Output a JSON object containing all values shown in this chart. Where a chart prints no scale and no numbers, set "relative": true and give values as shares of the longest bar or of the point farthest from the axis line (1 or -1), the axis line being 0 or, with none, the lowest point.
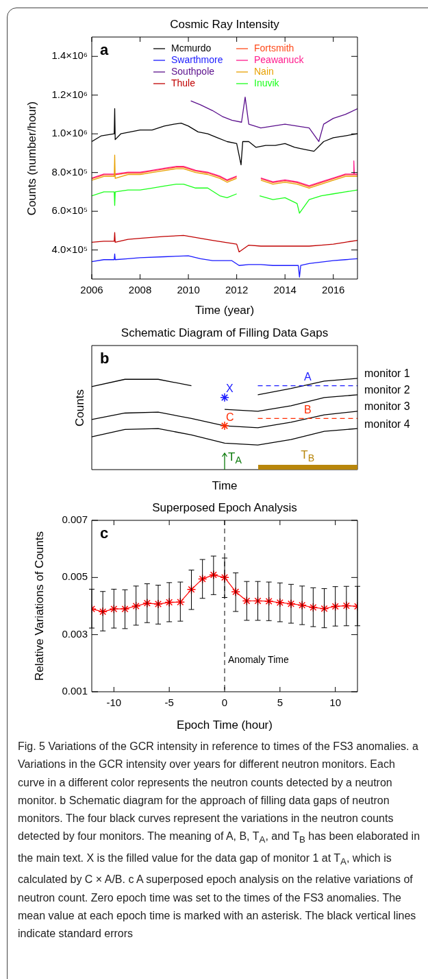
{
  "chart_data": [
    {
      "type": "line",
      "title": "Cosmic Ray Intensity",
      "xlabel": "Time (year)",
      "ylabel": "Counts (number/hour)",
      "legend": "top",
      "annotations": [
        "a"
      ],
      "xlim": [
        2006,
        2017
      ],
      "xticks": [
        2006,
        2008,
        2010,
        2012,
        2014,
        2016
      ],
      "ylim": [
        250000,
        1500000
      ],
      "yticks": [
        {
          "value": 400000,
          "label": "4.0×10⁵"
        },
        {
          "value": 600000,
          "label": "6.0×10⁵"
        },
        {
          "value": 800000,
          "label": "8.0×10⁵"
        },
        {
          "value": 1000000,
          "label": "1.0×10⁶"
        },
        {
          "value": 1200000,
          "label": "1.2×10⁶"
        },
        {
          "value": 1400000,
          "label": "1.4×10⁶"
        }
      ],
      "series": [
        {
          "name": "Mcmurdo",
          "color": "#000000",
          "x": [
            2006,
            2006.4,
            2006.93,
            2006.95,
            2006.97,
            2007.2,
            2007.6,
            2008,
            2008.5,
            2009,
            2009.4,
            2009.7,
            2010,
            2010.4,
            2010.8,
            2011.2,
            2011.6,
            2012,
            2012.18,
            2012.25,
            2012.5,
            2012.8,
            2013.2,
            2013.6,
            2014,
            2014.4,
            2014.8,
            2015.2,
            2015.6,
            2016,
            2016.5,
            2017
          ],
          "values": [
            960000,
            990000,
            1000000,
            1130000,
            970000,
            1000000,
            1010000,
            1020000,
            1020000,
            1040000,
            1050000,
            1055000,
            1040000,
            1010000,
            1000000,
            980000,
            960000,
            950000,
            840000,
            960000,
            960000,
            930000,
            940000,
            940000,
            950000,
            930000,
            920000,
            910000,
            960000,
            980000,
            990000,
            1000000
          ]
        },
        {
          "name": "Swarthmore",
          "color": "#1a1aff",
          "x": [
            2006,
            2006.5,
            2006.93,
            2006.95,
            2006.97,
            2007.5,
            2008,
            2009,
            2010,
            2010.5,
            2011,
            2011.8,
            2012.1,
            2012.5,
            2013,
            2013.5,
            2014,
            2014.55,
            2014.6,
            2014.65,
            2015,
            2016,
            2016.5,
            2017
          ],
          "values": [
            340000,
            350000,
            350000,
            380000,
            350000,
            355000,
            360000,
            365000,
            370000,
            355000,
            345000,
            345000,
            320000,
            325000,
            325000,
            320000,
            320000,
            320000,
            260000,
            320000,
            330000,
            345000,
            350000,
            355000
          ]
        },
        {
          "name": "Southpole",
          "color": "#5a0f8c",
          "x": [
            2010.1,
            2010.5,
            2011,
            2011.4,
            2011.8,
            2012.2,
            2012.35,
            2012.5,
            2013,
            2013.5,
            2014,
            2014.5,
            2015,
            2015.4,
            2015.6,
            2016,
            2016.5,
            2017
          ],
          "values": [
            1170000,
            1150000,
            1120000,
            1090000,
            1070000,
            1060000,
            1190000,
            1050000,
            1030000,
            1040000,
            1050000,
            1040000,
            1030000,
            960000,
            1050000,
            1080000,
            1100000,
            1130000
          ]
        },
        {
          "name": "Thule",
          "color": "#c00000",
          "x": [
            2006,
            2006.5,
            2006.93,
            2006.95,
            2006.97,
            2007.5,
            2008,
            2009,
            2009.8,
            2010.5,
            2011,
            2011.5,
            2012,
            2012.1,
            2012.5,
            2013,
            2014,
            2015,
            2015.5,
            2016,
            2016.5,
            2017
          ],
          "values": [
            440000,
            445000,
            445000,
            490000,
            440000,
            455000,
            460000,
            470000,
            475000,
            460000,
            450000,
            440000,
            430000,
            390000,
            425000,
            420000,
            420000,
            420000,
            425000,
            430000,
            440000,
            450000
          ]
        },
        {
          "name": "Fortsmith",
          "color": "#ff4a1a",
          "x": [
            2006,
            2006.5,
            2006.93,
            2007.5,
            2008,
            2008.5,
            2009,
            2009.5,
            2009.8,
            2010.3,
            2010.8,
            2011.3,
            2011.6,
            2012,
            2012.5,
            2013,
            2013.5,
            2014,
            2014.5,
            2015,
            2015.5,
            2016,
            2016.5,
            2017
          ],
          "values": [
            768000,
            788000,
            788000,
            798000,
            798000,
            808000,
            818000,
            828000,
            828000,
            808000,
            798000,
            778000,
            758000,
            778000,
            null,
            768000,
            748000,
            758000,
            748000,
            728000,
            748000,
            768000,
            788000,
            788000
          ]
        },
        {
          "name": "Peawanuck",
          "color": "#ff1a8c",
          "x": [
            2006,
            2006.5,
            2006.93,
            2007.5,
            2008,
            2008.5,
            2009,
            2009.5,
            2009.8,
            2010.3,
            2010.8,
            2011.3,
            2011.6,
            2012,
            2012.5,
            2013,
            2013.5,
            2014,
            2014.5,
            2015,
            2015.5,
            2016,
            2016.5,
            2016.83,
            2016.85,
            2016.87,
            2017
          ],
          "values": [
            772000,
            792000,
            792000,
            802000,
            802000,
            812000,
            822000,
            832000,
            832000,
            812000,
            802000,
            782000,
            762000,
            782000,
            null,
            772000,
            752000,
            762000,
            752000,
            732000,
            752000,
            772000,
            792000,
            792000,
            860000,
            792000,
            792000
          ]
        },
        {
          "name": "Nain",
          "color": "#e8a000",
          "x": [
            2006,
            2006.5,
            2006.93,
            2006.95,
            2006.97,
            2007.5,
            2008,
            2008.5,
            2009,
            2009.5,
            2009.8,
            2010.3,
            2010.8,
            2011.3,
            2011.6,
            2012,
            2012.5,
            2013,
            2013.5,
            2014,
            2014.5,
            2015,
            2015.5,
            2016,
            2016.5,
            2017
          ],
          "values": [
            760000,
            780000,
            780000,
            890000,
            770000,
            790000,
            790000,
            800000,
            810000,
            820000,
            820000,
            800000,
            790000,
            770000,
            750000,
            770000,
            null,
            760000,
            740000,
            750000,
            740000,
            720000,
            740000,
            760000,
            780000,
            780000
          ]
        },
        {
          "name": "Inuvik",
          "color": "#1aff1a",
          "x": [
            2006,
            2006.5,
            2006.93,
            2006.95,
            2006.97,
            2007.5,
            2008,
            2008.5,
            2009,
            2009.5,
            2009.8,
            2010.3,
            2010.8,
            2011.3,
            2011.6,
            2012,
            2012.5,
            2012.95,
            2013.5,
            2014,
            2014.5,
            2014.6,
            2015,
            2015.5,
            2016,
            2016.5,
            2017
          ],
          "values": [
            680000,
            700000,
            700000,
            630000,
            700000,
            710000,
            710000,
            720000,
            730000,
            740000,
            740000,
            720000,
            720000,
            680000,
            670000,
            690000,
            null,
            680000,
            660000,
            670000,
            640000,
            590000,
            660000,
            680000,
            690000,
            700000,
            710000
          ]
        }
      ]
    },
    {
      "type": "line",
      "title": "Schematic Diagram of Filling Data Gaps",
      "xlabel": "Time",
      "ylabel": "Counts",
      "relative": true,
      "annotations": [
        "b",
        "T$_{A}$",
        "T$_{B}$"
      ],
      "categories": [
        null,
        null,
        null,
        null,
        null,
        null,
        null,
        null,
        null
      ],
      "series": [
        {
          "name": "monitor 1",
          "color": "#000000",
          "values": [
            0.91,
            0.99,
            0.99,
            0.92,
            null,
            0.82,
            0.89,
            0.97,
            1.0
          ]
        },
        {
          "name": "monitor 2",
          "color": "#000000",
          "values": [
            null,
            null,
            null,
            null,
            0.66,
            0.64,
            0.7,
            0.79,
            0.82
          ]
        },
        {
          "name": "monitor 3",
          "color": "#000000",
          "values": [
            0.55,
            0.62,
            0.63,
            0.56,
            0.48,
            0.46,
            0.52,
            0.6,
            0.64
          ]
        },
        {
          "name": "monitor 4",
          "color": "#000000",
          "values": [
            0.36,
            0.44,
            0.45,
            0.38,
            0.29,
            0.27,
            0.33,
            0.42,
            0.45
          ]
        },
        {
          "name": "X",
          "marker": "cross",
          "color": "#1a1aff",
          "values": [
            null,
            null,
            null,
            null,
            0.79,
            null,
            null,
            null,
            null
          ]
        },
        {
          "name": "C",
          "marker": "cross",
          "color": "#ff2a00",
          "values": [
            null,
            null,
            null,
            null,
            0.48,
            null,
            null,
            null,
            null
          ]
        },
        {
          "name": "A",
          "line_style": "dashed",
          "color": "#1a1aff",
          "values": [
            null,
            null,
            null,
            null,
            null,
            0.92,
            0.92,
            0.92,
            0.92
          ]
        },
        {
          "name": "B",
          "line_style": "dashed",
          "color": "#ff2a00",
          "values": [
            null,
            null,
            null,
            null,
            null,
            0.56,
            0.56,
            0.56,
            0.56
          ]
        }
      ]
    },
    {
      "type": "line",
      "title": "Superposed Epoch Analysis",
      "xlabel": "Epoch Time (hour)",
      "ylabel": "Relative Variations of Counts",
      "marker": "cross",
      "color": "#ff0000",
      "annotations": [
        "c",
        "Fig. 5  Variations of the GCR intensity in reference to times of the FS3 anomalies. a Variations in the GCR intensity over years for different neutron monitors. Each curve in a different color represents the neutron counts detected by a neutron monitor. b Schematic diagram for the approach of filling data gaps of neutron monitors. The four black curves represent the variations in the neutron counts detected by four monitors. The meaning of A, B, T$_{A}$, and T$_{B}$ has been elaborated in the main text. X is the filled value for the data gap of monitor 1 at T$_{A}$, which is calculated by C × A/B. c A superposed epoch analysis on the relative variations of neutron count. Zero epoch time was set to the times of the FS3 anomalies. The mean value at each epoch time is marked with an asterisk. The black vertical lines indicate standard errors"
      ],
      "xlim": [
        -12,
        12
      ],
      "xticks": [
        -10,
        -5,
        0,
        5,
        10
      ],
      "ylim": [
        0.001,
        0.007
      ],
      "yticks": [
        0.001,
        0.003,
        0.005,
        0.007
      ],
      "ref_lines": [
        {
          "axis": "x",
          "value": 0,
          "label": "Anomaly Time",
          "line_style": "dashed"
        }
      ],
      "x": [
        -12,
        -11,
        -10,
        -9,
        -8,
        -7,
        -6,
        -5,
        -4,
        -3,
        -2,
        -1,
        0,
        1,
        2,
        3,
        4,
        5,
        6,
        7,
        8,
        9,
        10,
        11,
        12
      ],
      "values": [
        0.0039,
        0.0038,
        0.0039,
        0.0039,
        0.004,
        0.0041,
        0.00407,
        0.00413,
        0.00414,
        0.00458,
        0.00495,
        0.00509,
        0.005,
        0.0045,
        0.00418,
        0.00418,
        0.00417,
        0.00412,
        0.00408,
        0.00403,
        0.00395,
        0.00391,
        0.00399,
        0.00401,
        0.00399
      ],
      "errors": [
        [
          0.00323,
          0.00459
        ],
        [
          0.00313,
          0.00451
        ],
        [
          0.00323,
          0.00459
        ],
        [
          0.00321,
          0.00457
        ],
        [
          0.00333,
          0.0047
        ],
        [
          0.00342,
          0.00478
        ],
        [
          0.00337,
          0.00473
        ],
        [
          0.00345,
          0.00482
        ],
        [
          0.00347,
          0.00484
        ],
        [
          0.00388,
          0.00526
        ],
        [
          0.00427,
          0.00563
        ],
        [
          0.0044,
          0.00575
        ],
        [
          0.0043,
          0.00568
        ],
        [
          0.00381,
          0.00516
        ],
        [
          0.0035,
          0.00486
        ],
        [
          0.0035,
          0.00486
        ],
        [
          0.00349,
          0.00484
        ],
        [
          0.00345,
          0.00481
        ],
        [
          0.0034,
          0.00476
        ],
        [
          0.00335,
          0.0047
        ],
        [
          0.00328,
          0.00464
        ],
        [
          0.00324,
          0.00461
        ],
        [
          0.0033,
          0.00468
        ],
        [
          0.00331,
          0.00469
        ],
        [
          0.00331,
          0.00469
        ]
      ]
    }
  ]
}
